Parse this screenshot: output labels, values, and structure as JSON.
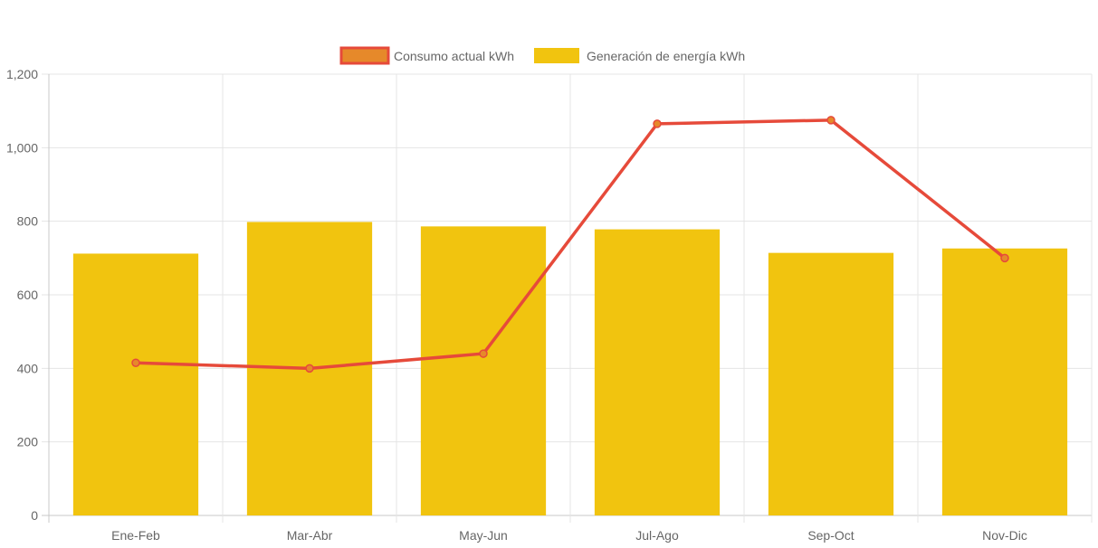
{
  "chart_data": {
    "type": "bar",
    "categories": [
      "Ene-Feb",
      "Mar-Abr",
      "May-Jun",
      "Jul-Ago",
      "Sep-Oct",
      "Nov-Dic"
    ],
    "series": [
      {
        "name": "Consumo actual kWh",
        "type": "line",
        "values": [
          415,
          400,
          440,
          1065,
          1075,
          700
        ],
        "color": "#e64a3a",
        "fill": "#e6892a"
      },
      {
        "name": "Generación de energía kWh",
        "type": "bar",
        "values": [
          712,
          798,
          786,
          778,
          714,
          726
        ],
        "color": "#f1c40f"
      }
    ],
    "ylim": [
      0,
      1200
    ],
    "yticks": [
      "0",
      "200",
      "400",
      "600",
      "800",
      "1,000",
      "1,200"
    ],
    "ytick_values": [
      0,
      200,
      400,
      600,
      800,
      1000,
      1200
    ],
    "grid": true,
    "legend": "top-center"
  }
}
